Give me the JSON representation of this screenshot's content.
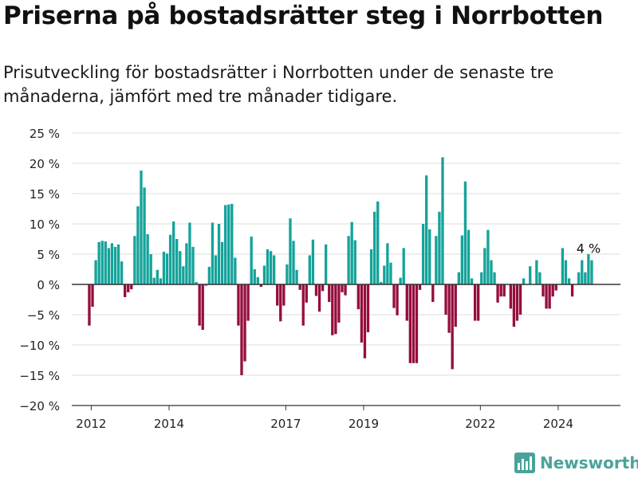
{
  "header": {
    "title": "Priserna på bostadsrätter steg i Norrbotten",
    "subtitle": "Prisutveckling för bostadsrätter i Norrbotten under de senaste tre månaderna, jämfört med tre månader tidigare."
  },
  "logo": {
    "text": "Newsworthy",
    "icon": "bar-chart-logo-icon"
  },
  "colors": {
    "positive": "#14a39a",
    "negative": "#960d3e",
    "grid": "#dddddd",
    "axis": "#333333"
  },
  "chart_data": {
    "type": "bar",
    "title": "Priserna på bostadsrätter steg i Norrbotten",
    "subtitle": "Prisutveckling för bostadsrätter i Norrbotten under de senaste tre månaderna, jämfört med tre månader tidigare.",
    "xlabel": "",
    "ylabel": "",
    "ylim": [
      -20,
      25
    ],
    "yticks": [
      25,
      20,
      15,
      10,
      5,
      0,
      -5,
      -10,
      -15,
      -20
    ],
    "ytick_labels": [
      "25 %",
      "20 %",
      "15 %",
      "10 %",
      "5 %",
      "0 %",
      "−5 %",
      "−10 %",
      "−15 %",
      "−20 %"
    ],
    "xticks": [
      {
        "label": "2012",
        "x": 2012.0
      },
      {
        "label": "2014",
        "x": 2014.0
      },
      {
        "label": "2017",
        "x": 2017.0
      },
      {
        "label": "2019",
        "x": 2019.0
      },
      {
        "label": "2022",
        "x": 2022.0
      },
      {
        "label": "2024",
        "x": 2024.0
      }
    ],
    "xlim": [
      2011.5,
      2025.6
    ],
    "x_start": 2011.95,
    "step": 0.0833,
    "grid": true,
    "legend": "none",
    "annotation": {
      "text": "4 %",
      "index": 155
    },
    "values": [
      -6.8,
      -3.7,
      4.0,
      7.0,
      7.2,
      7.1,
      6.0,
      6.8,
      6.2,
      6.6,
      3.8,
      -2.1,
      -1.3,
      -0.8,
      8.0,
      12.9,
      18.8,
      16.0,
      8.3,
      5.0,
      1.1,
      2.4,
      1.0,
      5.4,
      5.1,
      8.2,
      10.4,
      7.5,
      5.5,
      3.0,
      6.8,
      10.2,
      6.2,
      0.4,
      -6.8,
      -7.5,
      -0.2,
      2.9,
      10.2,
      4.8,
      10.0,
      7.0,
      13.1,
      13.2,
      13.3,
      4.4,
      -6.8,
      -15.0,
      -12.7,
      -6.0,
      7.9,
      2.5,
      1.2,
      -0.4,
      3.1,
      5.8,
      5.5,
      4.8,
      -3.5,
      -6.1,
      -3.5,
      3.3,
      10.9,
      7.2,
      2.4,
      -0.9,
      -6.8,
      -3.0,
      4.8,
      7.4,
      -1.9,
      -4.5,
      -1.1,
      6.6,
      -2.9,
      -8.4,
      -8.2,
      -6.3,
      -1.3,
      -1.8,
      8.0,
      10.3,
      7.3,
      -4.1,
      -9.6,
      -12.2,
      -7.9,
      5.8,
      12.0,
      13.7,
      0.4,
      3.1,
      6.8,
      3.6,
      -3.9,
      -5.1,
      1.1,
      6.0,
      -6.0,
      -13.0,
      -13.0,
      -13.0,
      -0.9,
      10.0,
      18.0,
      9.1,
      -2.9,
      8.0,
      12.0,
      21.0,
      -5.0,
      -8.0,
      -14.0,
      -7.0,
      2.0,
      8.1,
      17.0,
      9.0,
      1.0,
      -6.0,
      -6.0,
      2.0,
      6.0,
      9.0,
      4.0,
      2.0,
      -3.0,
      -2.0,
      -2.0,
      0.0,
      -4.0,
      -7.0,
      -6.0,
      -5.0,
      1.0,
      0.0,
      3.0,
      0.0,
      4.0,
      2.0,
      -2.0,
      -4.0,
      -4.0,
      -2.0,
      -1.0,
      0.0,
      6.0,
      4.0,
      1.0,
      -2.0,
      0.0,
      2.0,
      4.0,
      2.0,
      5.0,
      4.0
    ]
  }
}
